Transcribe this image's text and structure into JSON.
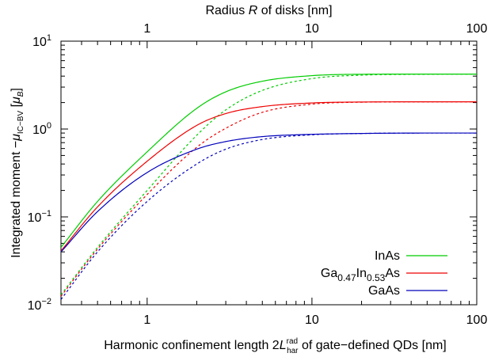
{
  "chart_data": {
    "type": "line",
    "x_scale": "log",
    "y_scale": "log",
    "xlim": [
      0.3,
      100
    ],
    "ylim": [
      0.01,
      10
    ],
    "grid": false,
    "legend_placement": "bottom-right",
    "top_axis": {
      "label_prefix": "Radius ",
      "label_var": "R",
      "label_suffix": " of disks [nm]",
      "tick_labels": [
        "1",
        "10",
        "100"
      ],
      "tick_values": [
        1,
        10,
        100
      ]
    },
    "x_axis": {
      "label_prefix": "Harmonic confinement length 2",
      "label_var": "L",
      "label_sup": "rad",
      "label_sub": "har",
      "label_suffix": " of gate−defined QDs [nm]",
      "tick_labels": [
        "1",
        "10",
        "100"
      ],
      "tick_values": [
        1,
        10,
        100
      ]
    },
    "y_axis": {
      "label_prefix": "Integrated moment −",
      "label_var": "μ",
      "label_sub": "IC−BV",
      "label_mid": " [",
      "label_unit_var": "μ",
      "label_unit_sub": "B",
      "label_suffix": "]",
      "tick_values": [
        0.01,
        0.1,
        1,
        10
      ],
      "tick_bases": [
        "10",
        "10",
        "10",
        "10"
      ],
      "tick_exponents": [
        "−2",
        "−1",
        "0",
        "1"
      ]
    },
    "legend": [
      {
        "parts": [
          {
            "t": "InAs"
          }
        ],
        "color": "#00cc00"
      },
      {
        "parts": [
          {
            "t": "Ga"
          },
          {
            "t": "0.47",
            "sub": true
          },
          {
            "t": "In"
          },
          {
            "t": "0.53",
            "sub": true
          },
          {
            "t": "As"
          }
        ],
        "color": "#ee0000"
      },
      {
        "parts": [
          {
            "t": "GaAs"
          }
        ],
        "color": "#0000bb"
      }
    ],
    "series": [
      {
        "material": "InAs",
        "style": "solid",
        "color": "#00cc00",
        "x": [
          0.3,
          0.5,
          1,
          2,
          3,
          5,
          10,
          20,
          50,
          100
        ],
        "y": [
          0.045,
          0.15,
          0.55,
          1.72,
          2.65,
          3.5,
          4.05,
          4.2,
          4.22,
          4.22
        ]
      },
      {
        "material": "InAs",
        "style": "dashed",
        "color": "#00cc00",
        "x": [
          0.3,
          0.5,
          1,
          2,
          3,
          5,
          10,
          20,
          50,
          100
        ],
        "y": [
          0.013,
          0.045,
          0.2,
          0.85,
          1.65,
          2.75,
          3.75,
          4.1,
          4.2,
          4.22
        ]
      },
      {
        "material": "Ga0.47In0.53As",
        "style": "solid",
        "color": "#ee0000",
        "x": [
          0.3,
          0.5,
          1,
          2,
          3,
          5,
          10,
          20,
          50,
          100
        ],
        "y": [
          0.041,
          0.13,
          0.43,
          1.1,
          1.5,
          1.8,
          1.98,
          2.03,
          2.04,
          2.04
        ]
      },
      {
        "material": "Ga0.47In0.53As",
        "style": "dashed",
        "color": "#ee0000",
        "x": [
          0.3,
          0.5,
          1,
          2,
          3,
          5,
          10,
          20,
          50,
          100
        ],
        "y": [
          0.0125,
          0.043,
          0.18,
          0.62,
          1.02,
          1.55,
          1.92,
          2.02,
          2.04,
          2.04
        ]
      },
      {
        "material": "GaAs",
        "style": "solid",
        "color": "#0000bb",
        "x": [
          0.3,
          0.5,
          1,
          2,
          3,
          5,
          10,
          20,
          50,
          100
        ],
        "y": [
          0.04,
          0.115,
          0.32,
          0.59,
          0.72,
          0.82,
          0.87,
          0.89,
          0.9,
          0.9
        ]
      },
      {
        "material": "GaAs",
        "style": "dashed",
        "color": "#0000bb",
        "x": [
          0.3,
          0.5,
          1,
          2,
          3,
          5,
          10,
          20,
          50,
          100
        ],
        "y": [
          0.0115,
          0.04,
          0.15,
          0.4,
          0.59,
          0.76,
          0.86,
          0.89,
          0.9,
          0.9
        ]
      }
    ]
  }
}
